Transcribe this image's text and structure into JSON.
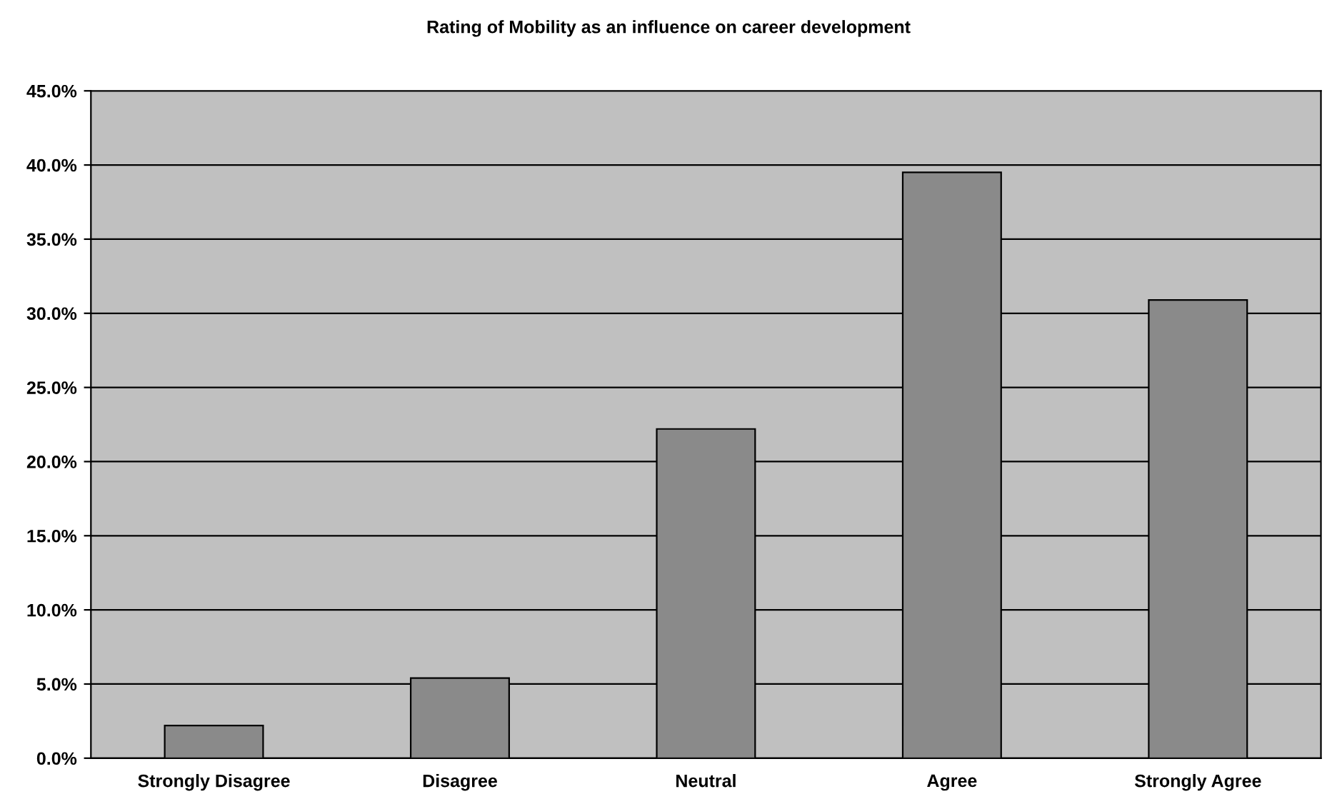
{
  "chart_data": {
    "type": "bar",
    "title": "Rating of Mobility as an influence on career development",
    "categories": [
      "Strongly Disagree",
      "Disagree",
      "Neutral",
      "Agree",
      "Strongly Agree"
    ],
    "values": [
      2.2,
      5.4,
      22.2,
      39.5,
      30.9
    ],
    "color": "#8a8a8a",
    "ylim": [
      0,
      45
    ],
    "yticks": [
      {
        "value": 0,
        "label": "0.0%"
      },
      {
        "value": 5,
        "label": "5.0%"
      },
      {
        "value": 10,
        "label": "10.0%"
      },
      {
        "value": 15,
        "label": "15.0%"
      },
      {
        "value": 20,
        "label": "20.0%"
      },
      {
        "value": 25,
        "label": "25.0%"
      },
      {
        "value": 30,
        "label": "30.0%"
      },
      {
        "value": 35,
        "label": "35.0%"
      },
      {
        "value": 40,
        "label": "40.0%"
      },
      {
        "value": 45,
        "label": "45.0%"
      }
    ],
    "grid": "y",
    "legend": false
  }
}
